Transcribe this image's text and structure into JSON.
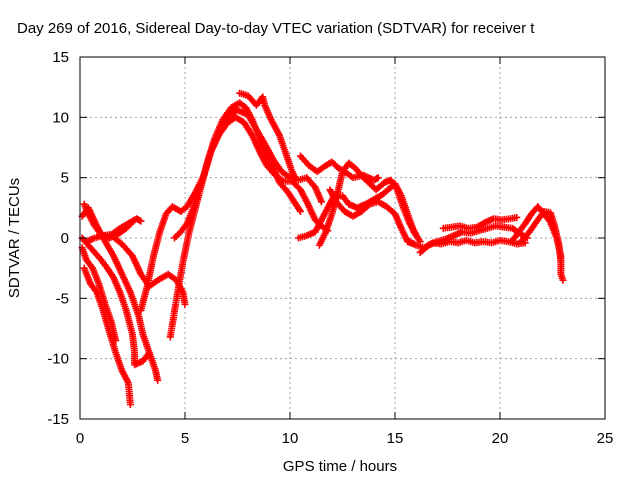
{
  "chart_data": {
    "type": "scatter",
    "title": "Day 269 of 2016, Sidereal Day-to-day VTEC variation (SDTVAR) for receiver t",
    "xlabel": "GPS time / hours",
    "ylabel": "SDTVAR / TECUs",
    "xlim": [
      0,
      25
    ],
    "ylim": [
      -15,
      15
    ],
    "xticks": [
      0,
      5,
      10,
      15,
      20,
      25
    ],
    "yticks": [
      -15,
      -10,
      -5,
      0,
      5,
      10,
      15
    ],
    "grid": true,
    "marker": "+",
    "color": "#ff0000",
    "series": [
      {
        "points": [
          [
            0.1,
            1.8
          ],
          [
            0.4,
            2.5
          ],
          [
            0.8,
            1.0
          ],
          [
            1.2,
            -0.3
          ],
          [
            1.6,
            -1.5
          ],
          [
            2.0,
            -3.0
          ],
          [
            2.4,
            -4.5
          ],
          [
            2.8,
            -6.5
          ],
          [
            3.0,
            -8.0
          ],
          [
            3.3,
            -9.5
          ],
          [
            3.6,
            -11.0
          ],
          [
            3.7,
            -11.8
          ]
        ]
      },
      {
        "points": [
          [
            0.1,
            -0.8
          ],
          [
            0.3,
            -1.8
          ],
          [
            0.6,
            -2.5
          ],
          [
            0.9,
            -3.8
          ],
          [
            1.2,
            -5.5
          ],
          [
            1.5,
            -7.0
          ],
          [
            1.7,
            -8.5
          ]
        ]
      },
      {
        "points": [
          [
            0.2,
            -2.5
          ],
          [
            0.5,
            -3.8
          ],
          [
            0.8,
            -4.5
          ],
          [
            1.1,
            -6.0
          ],
          [
            1.4,
            -7.8
          ],
          [
            1.7,
            -9.5
          ],
          [
            2.0,
            -11.0
          ],
          [
            2.3,
            -12.0
          ],
          [
            2.4,
            -13.8
          ]
        ]
      },
      {
        "points": [
          [
            0.1,
            0.0
          ],
          [
            0.4,
            -0.6
          ],
          [
            0.7,
            -1.2
          ],
          [
            1.0,
            -1.8
          ],
          [
            1.3,
            -2.5
          ],
          [
            1.6,
            -3.3
          ],
          [
            1.9,
            -4.5
          ],
          [
            2.2,
            -6.0
          ],
          [
            2.5,
            -8.0
          ],
          [
            2.6,
            -9.5
          ],
          [
            2.6,
            -10.5
          ],
          [
            3.0,
            -10.2
          ],
          [
            3.3,
            -9.5
          ]
        ]
      },
      {
        "points": [
          [
            0.2,
            2.8
          ],
          [
            0.4,
            2.0
          ],
          [
            0.7,
            1.0
          ],
          [
            1.0,
            0.3
          ],
          [
            1.4,
            0.0
          ],
          [
            1.8,
            0.3
          ],
          [
            2.2,
            0.8
          ],
          [
            2.6,
            1.5
          ]
        ]
      },
      {
        "points": [
          [
            0.3,
            -0.3
          ],
          [
            0.7,
            0.0
          ],
          [
            1.1,
            0.2
          ],
          [
            1.5,
            0.3
          ],
          [
            1.9,
            0.8
          ],
          [
            2.3,
            1.2
          ],
          [
            2.7,
            1.6
          ],
          [
            2.9,
            1.4
          ]
        ]
      },
      {
        "points": [
          [
            1.5,
            0.2
          ],
          [
            2.0,
            -0.5
          ],
          [
            2.5,
            -1.5
          ],
          [
            2.9,
            -3.0
          ],
          [
            3.3,
            -4.0
          ],
          [
            3.7,
            -3.5
          ],
          [
            4.2,
            -3.0
          ],
          [
            4.6,
            -3.5
          ],
          [
            4.9,
            -4.5
          ],
          [
            5.0,
            -5.5
          ]
        ]
      },
      {
        "points": [
          [
            2.9,
            -6.0
          ],
          [
            3.2,
            -4.0
          ],
          [
            3.5,
            -1.5
          ],
          [
            3.8,
            0.5
          ],
          [
            4.1,
            2.0
          ],
          [
            4.4,
            2.6
          ],
          [
            4.8,
            2.2
          ],
          [
            5.1,
            2.6
          ],
          [
            5.5,
            3.8
          ],
          [
            5.9,
            5.2
          ],
          [
            6.2,
            7.0
          ],
          [
            6.6,
            8.5
          ],
          [
            7.0,
            9.5
          ],
          [
            7.4,
            10.0
          ],
          [
            7.8,
            9.6
          ],
          [
            8.2,
            8.5
          ],
          [
            8.6,
            7.0
          ],
          [
            8.9,
            6.0
          ],
          [
            9.3,
            5.2
          ],
          [
            9.7,
            4.7
          ],
          [
            10.1,
            4.7
          ],
          [
            10.5,
            4.0
          ],
          [
            10.8,
            3.0
          ],
          [
            11.2,
            1.5
          ],
          [
            11.5,
            1.0
          ],
          [
            11.8,
            0.6
          ]
        ]
      },
      {
        "points": [
          [
            4.3,
            -8.2
          ],
          [
            4.6,
            -5.0
          ],
          [
            4.9,
            -2.0
          ],
          [
            5.2,
            0.5
          ],
          [
            5.5,
            2.5
          ],
          [
            5.8,
            4.5
          ],
          [
            6.1,
            6.5
          ],
          [
            6.4,
            8.2
          ],
          [
            6.8,
            9.8
          ],
          [
            7.2,
            10.8
          ],
          [
            7.6,
            11.2
          ],
          [
            7.9,
            10.8
          ],
          [
            8.2,
            9.8
          ],
          [
            8.5,
            8.5
          ],
          [
            8.8,
            7.2
          ],
          [
            9.2,
            5.8
          ],
          [
            9.5,
            4.6
          ],
          [
            9.9,
            3.8
          ],
          [
            10.2,
            3.0
          ],
          [
            10.5,
            2.2
          ]
        ]
      },
      {
        "points": [
          [
            4.5,
            0.0
          ],
          [
            4.8,
            0.5
          ],
          [
            5.1,
            1.2
          ],
          [
            5.4,
            2.5
          ],
          [
            5.7,
            4.0
          ],
          [
            6.0,
            5.8
          ],
          [
            6.3,
            7.5
          ],
          [
            6.7,
            9.0
          ],
          [
            7.1,
            10.2
          ],
          [
            7.5,
            10.6
          ],
          [
            8.0,
            10.2
          ],
          [
            8.4,
            9.0
          ],
          [
            8.8,
            7.8
          ],
          [
            9.2,
            6.5
          ],
          [
            9.6,
            5.5
          ],
          [
            10.0,
            5.0
          ],
          [
            10.4,
            4.8
          ],
          [
            10.8,
            5.0
          ],
          [
            11.2,
            4.2
          ],
          [
            11.5,
            3.0
          ]
        ]
      },
      {
        "points": [
          [
            7.6,
            12.0
          ],
          [
            8.0,
            11.8
          ],
          [
            8.4,
            11.0
          ],
          [
            8.7,
            11.7
          ],
          [
            8.8,
            11.0
          ],
          [
            9.1,
            9.8
          ],
          [
            9.5,
            8.5
          ],
          [
            9.8,
            7.0
          ],
          [
            10.1,
            5.5
          ],
          [
            10.3,
            4.8
          ]
        ]
      },
      {
        "points": [
          [
            10.5,
            6.8
          ],
          [
            10.9,
            6.0
          ],
          [
            11.3,
            5.5
          ],
          [
            11.7,
            6.0
          ],
          [
            12.0,
            6.3
          ],
          [
            12.3,
            5.8
          ],
          [
            12.6,
            5.5
          ],
          [
            13.0,
            5.0
          ],
          [
            13.5,
            5.2
          ],
          [
            14.0,
            4.8
          ],
          [
            14.2,
            5.0
          ]
        ]
      },
      {
        "points": [
          [
            10.4,
            0.0
          ],
          [
            10.8,
            0.2
          ],
          [
            11.2,
            0.5
          ],
          [
            11.5,
            1.5
          ],
          [
            11.8,
            2.5
          ],
          [
            12.1,
            3.5
          ],
          [
            12.5,
            3.5
          ],
          [
            12.8,
            2.8
          ],
          [
            13.2,
            2.5
          ],
          [
            13.6,
            2.8
          ],
          [
            14.0,
            3.2
          ],
          [
            14.4,
            3.6
          ],
          [
            14.8,
            4.2
          ],
          [
            15.0,
            4.5
          ],
          [
            15.3,
            3.5
          ],
          [
            15.6,
            2.0
          ],
          [
            15.9,
            0.5
          ],
          [
            16.2,
            -0.3
          ]
        ]
      },
      {
        "points": [
          [
            11.4,
            -0.6
          ],
          [
            11.7,
            0.5
          ],
          [
            12.0,
            2.0
          ],
          [
            12.3,
            4.0
          ],
          [
            12.5,
            5.5
          ],
          [
            12.8,
            6.2
          ],
          [
            13.1,
            5.8
          ],
          [
            13.5,
            5.0
          ],
          [
            13.8,
            4.5
          ],
          [
            14.1,
            4.0
          ],
          [
            14.5,
            4.6
          ],
          [
            14.8,
            4.8
          ],
          [
            15.1,
            4.0
          ],
          [
            15.4,
            2.5
          ],
          [
            15.7,
            1.2
          ],
          [
            16.0,
            0.3
          ]
        ]
      },
      {
        "points": [
          [
            11.9,
            4.0
          ],
          [
            12.2,
            3.0
          ],
          [
            12.6,
            2.2
          ],
          [
            13.0,
            1.8
          ],
          [
            13.4,
            2.2
          ],
          [
            13.8,
            2.8
          ],
          [
            14.2,
            3.0
          ],
          [
            14.6,
            2.6
          ],
          [
            15.0,
            2.0
          ],
          [
            15.3,
            0.8
          ],
          [
            15.6,
            -0.3
          ],
          [
            15.9,
            -0.5
          ]
        ]
      },
      {
        "points": [
          [
            15.6,
            -0.2
          ],
          [
            16.0,
            -0.6
          ],
          [
            16.4,
            -0.8
          ],
          [
            16.8,
            -0.4
          ],
          [
            17.2,
            -0.5
          ],
          [
            17.6,
            -0.3
          ],
          [
            18.0,
            -0.4
          ],
          [
            18.4,
            -0.2
          ],
          [
            18.8,
            -0.4
          ],
          [
            19.2,
            -0.3
          ],
          [
            19.6,
            -0.4
          ],
          [
            20.0,
            -0.2
          ],
          [
            20.4,
            -0.3
          ],
          [
            20.8,
            -0.5
          ],
          [
            21.2,
            -0.4
          ]
        ]
      },
      {
        "points": [
          [
            16.2,
            -1.2
          ],
          [
            16.6,
            -0.6
          ],
          [
            17.0,
            -0.3
          ],
          [
            17.4,
            -0.1
          ],
          [
            17.8,
            0.2
          ],
          [
            18.2,
            0.5
          ],
          [
            18.6,
            0.4
          ],
          [
            19.0,
            0.6
          ],
          [
            19.4,
            0.8
          ],
          [
            19.8,
            1.0
          ],
          [
            20.2,
            0.9
          ],
          [
            20.6,
            0.8
          ],
          [
            21.0,
            0.3
          ],
          [
            21.3,
            0.0
          ]
        ]
      },
      {
        "points": [
          [
            17.3,
            0.8
          ],
          [
            17.7,
            0.9
          ],
          [
            18.1,
            1.0
          ],
          [
            18.5,
            0.8
          ],
          [
            18.9,
            0.9
          ],
          [
            19.3,
            1.3
          ],
          [
            19.7,
            1.6
          ],
          [
            20.1,
            1.5
          ],
          [
            20.5,
            1.6
          ],
          [
            20.8,
            1.7
          ]
        ]
      },
      {
        "points": [
          [
            20.6,
            -0.2
          ],
          [
            20.9,
            0.5
          ],
          [
            21.2,
            1.2
          ],
          [
            21.5,
            2.0
          ],
          [
            21.8,
            2.6
          ],
          [
            22.1,
            2.0
          ],
          [
            22.4,
            1.3
          ],
          [
            22.7,
            0.0
          ],
          [
            22.9,
            -1.5
          ],
          [
            22.9,
            -3.0
          ],
          [
            23.0,
            -3.5
          ]
        ]
      },
      {
        "points": [
          [
            21.0,
            -0.3
          ],
          [
            21.4,
            0.5
          ],
          [
            21.8,
            1.5
          ],
          [
            22.1,
            2.2
          ],
          [
            22.4,
            2.1
          ],
          [
            22.6,
            1.0
          ],
          [
            22.8,
            -0.5
          ],
          [
            22.9,
            -2.0
          ]
        ]
      }
    ]
  }
}
